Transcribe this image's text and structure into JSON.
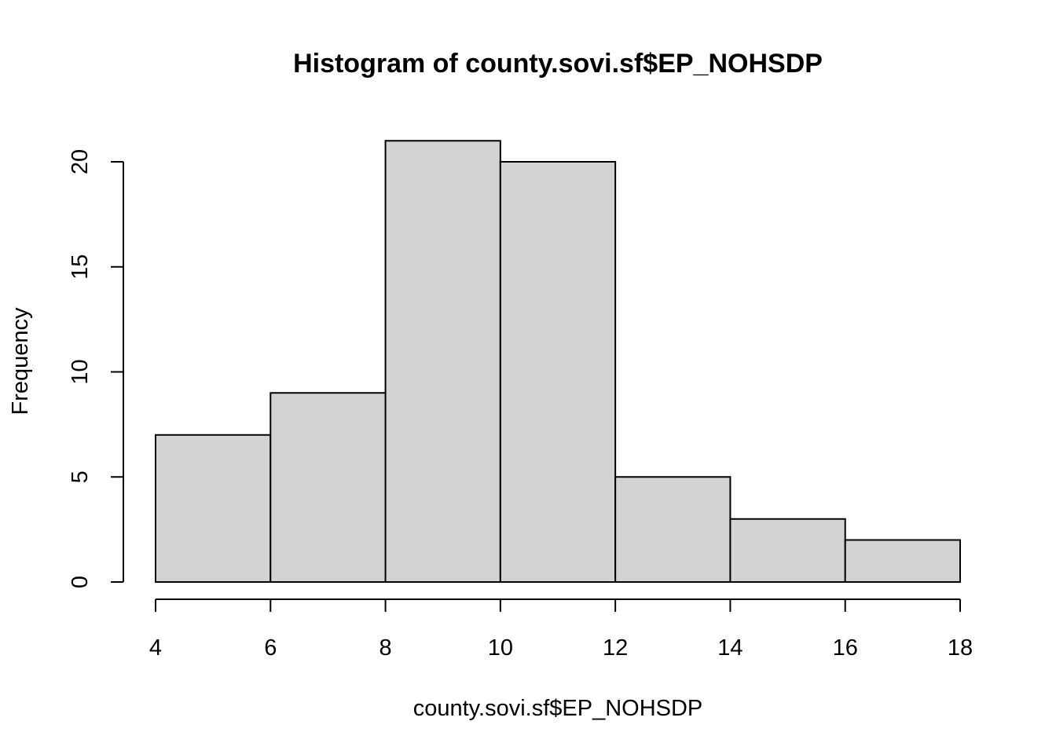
{
  "chart_data": {
    "type": "bar",
    "title": "Histogram of county.sovi.sf$EP_NOHSDP",
    "xlabel": "county.sovi.sf$EP_NOHSDP",
    "ylabel": "Frequency",
    "bins": [
      {
        "x0": 4,
        "x1": 6,
        "count": 7
      },
      {
        "x0": 6,
        "x1": 8,
        "count": 9
      },
      {
        "x0": 8,
        "x1": 10,
        "count": 21
      },
      {
        "x0": 10,
        "x1": 12,
        "count": 20
      },
      {
        "x0": 12,
        "x1": 14,
        "count": 5
      },
      {
        "x0": 14,
        "x1": 16,
        "count": 3
      },
      {
        "x0": 16,
        "x1": 18,
        "count": 2
      }
    ],
    "xlim": [
      4,
      18
    ],
    "ylim": [
      0,
      21
    ],
    "x_ticks": [
      4,
      6,
      8,
      10,
      12,
      14,
      16,
      18
    ],
    "y_ticks": [
      0,
      5,
      10,
      15,
      20
    ],
    "grid": false,
    "bar_fill": "#d3d3d3",
    "bar_stroke": "#000000"
  }
}
